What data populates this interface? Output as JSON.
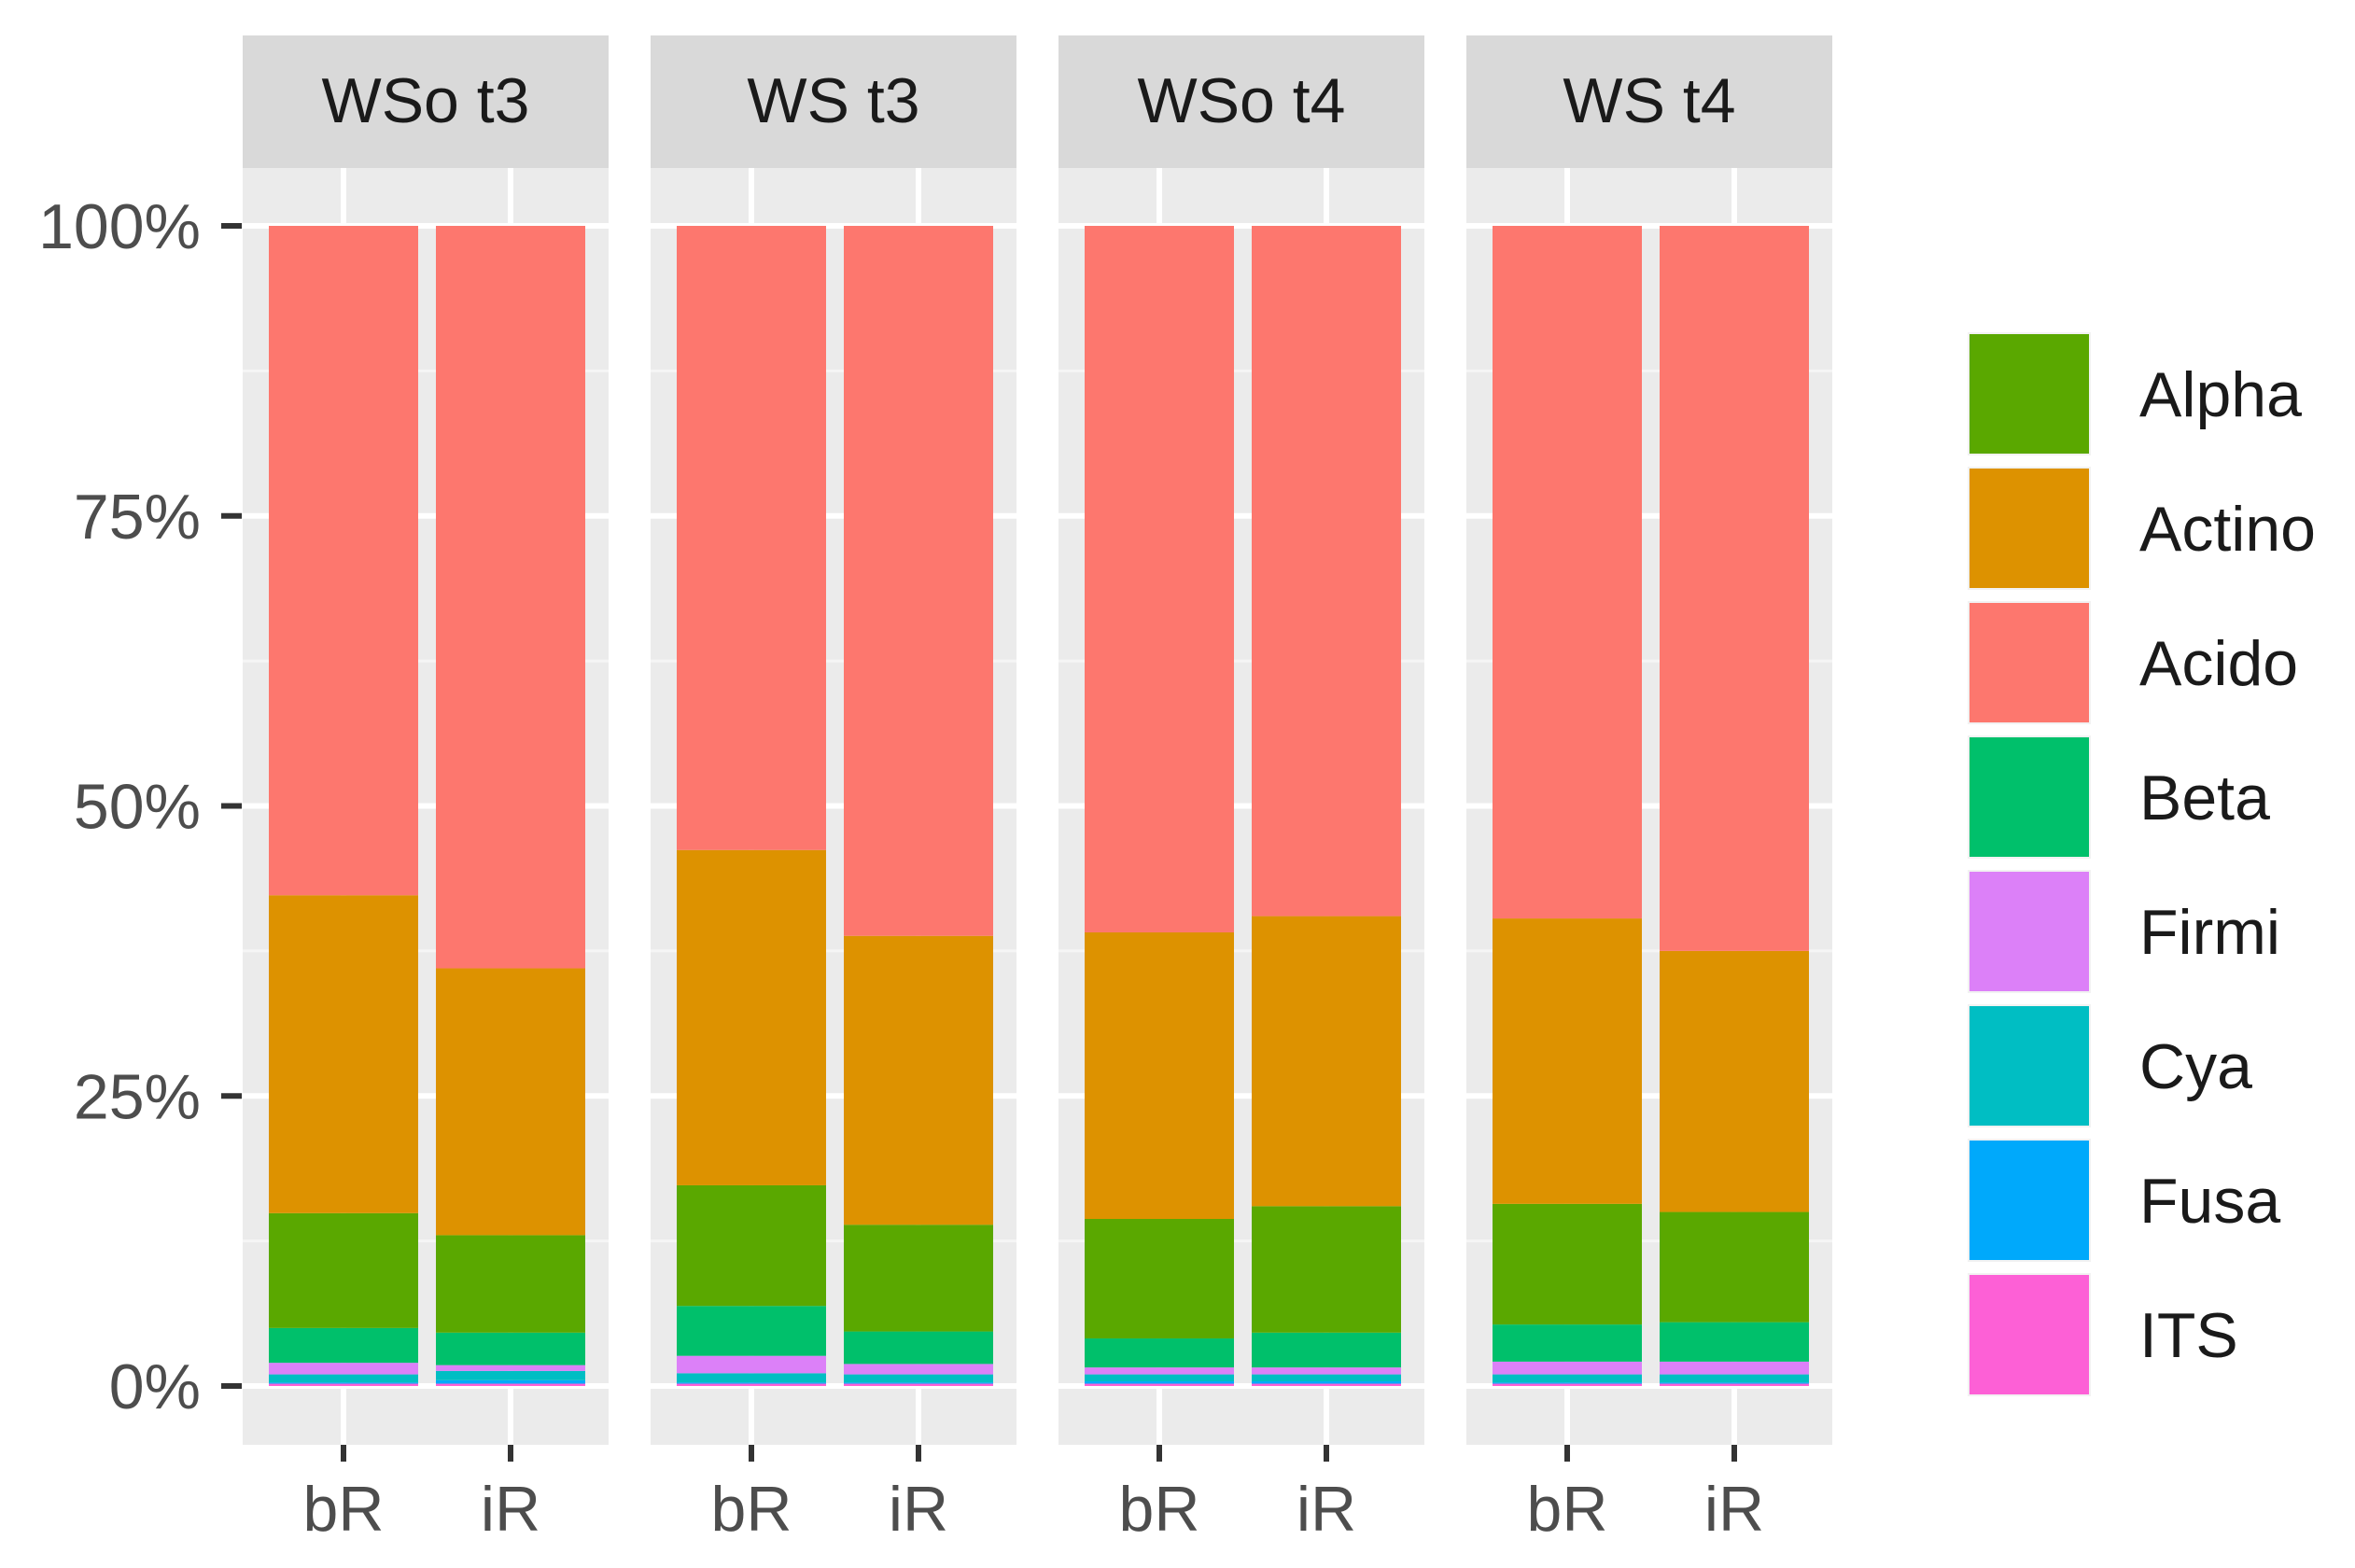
{
  "chart_data": {
    "type": "bar",
    "stacked": true,
    "normalized": true,
    "ylim": [
      0,
      100
    ],
    "y_ticks": [
      0,
      25,
      50,
      75,
      100
    ],
    "y_tick_labels": [
      "0%",
      "25%",
      "50%",
      "75%",
      "100%"
    ],
    "legend_position": "right",
    "colors": {
      "Alpha": "#5aa800",
      "Actino": "#dd9200",
      "Acido": "#fd776e",
      "Beta": "#00c06b",
      "Firmi": "#dc80f8",
      "Cya": "#00bec3",
      "Fusa": "#00a9fb",
      "ITS": "#fd60d6"
    },
    "legend": [
      "Alpha",
      "Actino",
      "Acido",
      "Beta",
      "Firmi",
      "Cya",
      "Fusa",
      "ITS"
    ],
    "stack_order_bottom_to_top": [
      "ITS",
      "Fusa",
      "Cya",
      "Firmi",
      "Beta",
      "Alpha",
      "Actino",
      "Acido"
    ],
    "facets": [
      {
        "title": "WSo t3",
        "categories": [
          "bR",
          "iR"
        ],
        "bars": [
          {
            "ITS": 0.2,
            "Fusa": 0.1,
            "Cya": 0.7,
            "Firmi": 1.0,
            "Beta": 3.0,
            "Alpha": 9.9,
            "Actino": 27.4,
            "Acido": 57.7
          },
          {
            "ITS": 0.2,
            "Fusa": 0.3,
            "Cya": 0.8,
            "Firmi": 0.5,
            "Beta": 2.8,
            "Alpha": 8.4,
            "Actino": 23.0,
            "Acido": 64.0
          }
        ]
      },
      {
        "title": "WS t3",
        "categories": [
          "bR",
          "iR"
        ],
        "bars": [
          {
            "ITS": 0.2,
            "Fusa": 0.1,
            "Cya": 0.8,
            "Firmi": 1.5,
            "Beta": 4.3,
            "Alpha": 10.4,
            "Actino": 28.9,
            "Acido": 53.8
          },
          {
            "ITS": 0.2,
            "Fusa": 0.1,
            "Cya": 0.7,
            "Firmi": 0.9,
            "Beta": 2.8,
            "Alpha": 9.2,
            "Actino": 24.9,
            "Acido": 61.2
          }
        ]
      },
      {
        "title": "WSo t4",
        "categories": [
          "bR",
          "iR"
        ],
        "bars": [
          {
            "ITS": 0.2,
            "Fusa": 0.2,
            "Cya": 0.6,
            "Firmi": 0.6,
            "Beta": 2.5,
            "Alpha": 10.3,
            "Actino": 24.7,
            "Acido": 60.9
          },
          {
            "ITS": 0.2,
            "Fusa": 0.2,
            "Cya": 0.6,
            "Firmi": 0.6,
            "Beta": 3.0,
            "Alpha": 10.9,
            "Actino": 25.0,
            "Acido": 59.5
          }
        ]
      },
      {
        "title": "WS t4",
        "categories": [
          "bR",
          "iR"
        ],
        "bars": [
          {
            "ITS": 0.2,
            "Fusa": 0.1,
            "Cya": 0.7,
            "Firmi": 1.1,
            "Beta": 3.2,
            "Alpha": 10.4,
            "Actino": 24.6,
            "Acido": 59.7
          },
          {
            "ITS": 0.2,
            "Fusa": 0.1,
            "Cya": 0.7,
            "Firmi": 1.1,
            "Beta": 3.4,
            "Alpha": 9.5,
            "Actino": 22.5,
            "Acido": 62.5
          }
        ]
      }
    ]
  }
}
